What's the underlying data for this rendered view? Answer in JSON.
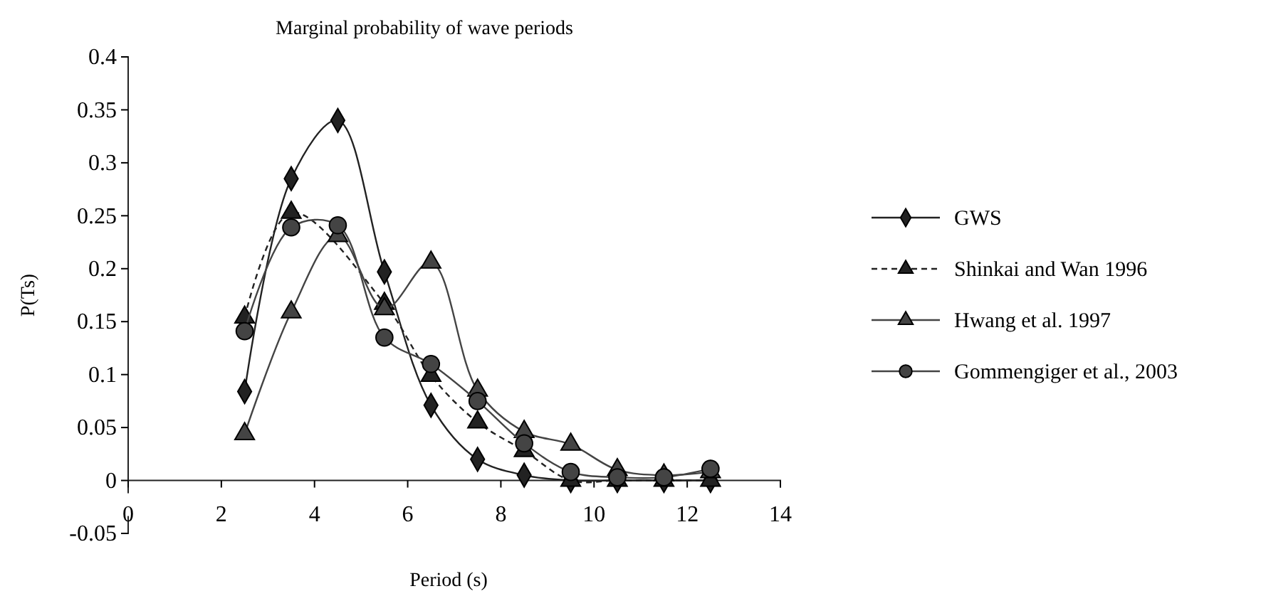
{
  "chart_data": {
    "type": "line",
    "title": "Marginal probability of wave periods",
    "xlabel": "Period (s)",
    "ylabel": "P(Ts)",
    "x": [
      2.5,
      3.5,
      4.5,
      5.5,
      6.5,
      7.5,
      8.5,
      9.5,
      10.5,
      11.5,
      12.5
    ],
    "xlim": [
      0,
      14
    ],
    "xticks": [
      0,
      2,
      4,
      6,
      8,
      10,
      12,
      14
    ],
    "ylim": [
      -0.05,
      0.4
    ],
    "yticks": [
      -0.05,
      0,
      0.05,
      0.1,
      0.15,
      0.2,
      0.25,
      0.3,
      0.35,
      0.4
    ],
    "legend": "right",
    "grid": false,
    "series": [
      {
        "name": "GWS",
        "color": "#222222",
        "marker": "diamond",
        "line_style": "solid",
        "values": [
          0.084,
          0.285,
          0.34,
          0.197,
          0.071,
          0.02,
          0.005,
          0,
          0,
          0,
          0
        ]
      },
      {
        "name": "Shinkai and Wan 1996",
        "color": "#222222",
        "marker": "triangle",
        "line_style": "dashed",
        "values": [
          0.154,
          0.253,
          null,
          0.167,
          0.099,
          0.055,
          0.028,
          0,
          0,
          0,
          0
        ]
      },
      {
        "name": "Hwang et al. 1997",
        "color": "#444444",
        "marker": "triangle",
        "line_style": "solid",
        "values": [
          0.044,
          0.159,
          0.231,
          0.162,
          0.206,
          0.085,
          0.046,
          0.034,
          0.01,
          0.005,
          0.008
        ]
      },
      {
        "name": "Gommengiger et al., 2003",
        "color": "#444444",
        "marker": "circle",
        "line_style": "solid",
        "values": [
          0.141,
          0.239,
          0.241,
          0.135,
          0.11,
          0.075,
          0.035,
          0.008,
          0.003,
          0.003,
          0.011
        ]
      }
    ]
  }
}
